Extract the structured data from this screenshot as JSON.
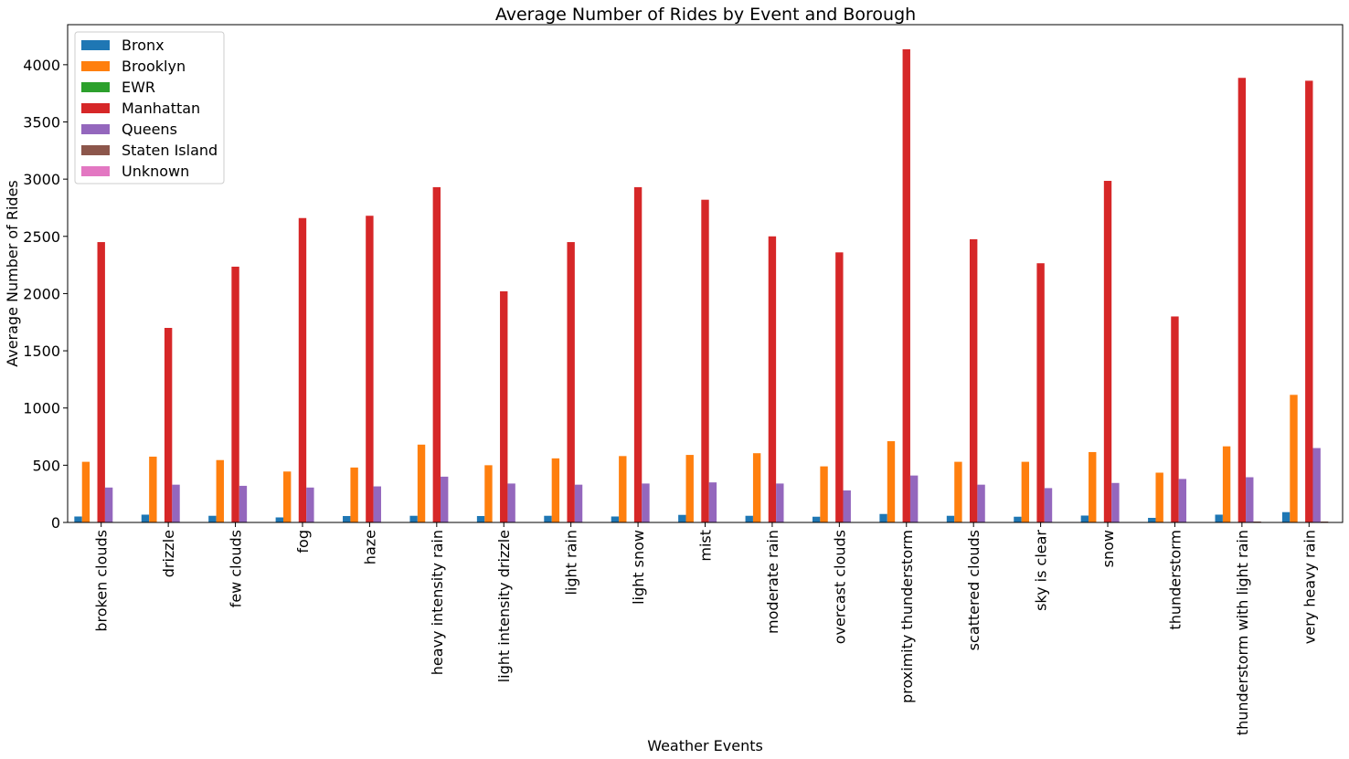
{
  "chart_data": {
    "type": "bar",
    "title": "Average Number of Rides by Event and Borough",
    "xlabel": "Weather Events",
    "ylabel": "Average Number of Rides",
    "ylim": [
      0,
      4350
    ],
    "yticks": [
      0,
      500,
      1000,
      1500,
      2000,
      2500,
      3000,
      3500,
      4000
    ],
    "grid": false,
    "legend_position": "top-left",
    "categories": [
      "broken clouds",
      "drizzle",
      "few clouds",
      "fog",
      "haze",
      "heavy intensity rain",
      "light intensity drizzle",
      "light rain",
      "light snow",
      "mist",
      "moderate rain",
      "overcast clouds",
      "proximity thunderstorm",
      "scattered clouds",
      "sky is clear",
      "snow",
      "thunderstorm",
      "thunderstorm with light rain",
      "very heavy rain"
    ],
    "series": [
      {
        "name": "Bronx",
        "color": "#1f77b4",
        "values": [
          52,
          68,
          58,
          44,
          56,
          58,
          56,
          58,
          52,
          66,
          58,
          50,
          74,
          58,
          50,
          60,
          40,
          68,
          90
        ]
      },
      {
        "name": "Brooklyn",
        "color": "#ff7f0e",
        "values": [
          530,
          575,
          545,
          445,
          480,
          680,
          500,
          560,
          580,
          590,
          605,
          490,
          710,
          530,
          530,
          615,
          435,
          665,
          1115
        ]
      },
      {
        "name": "EWR",
        "color": "#2ca02c",
        "values": [
          0,
          0,
          0,
          0,
          0,
          0,
          0,
          0,
          0,
          0,
          0,
          0,
          0,
          0,
          0,
          0,
          0,
          0,
          0
        ]
      },
      {
        "name": "Manhattan",
        "color": "#d62728",
        "values": [
          2450,
          1700,
          2235,
          2660,
          2680,
          2930,
          2020,
          2450,
          2930,
          2820,
          2500,
          2360,
          4135,
          2475,
          2265,
          2985,
          1800,
          3885,
          3860
        ]
      },
      {
        "name": "Queens",
        "color": "#9467bd",
        "values": [
          305,
          330,
          320,
          305,
          315,
          400,
          340,
          330,
          340,
          350,
          340,
          280,
          410,
          330,
          300,
          345,
          380,
          395,
          650
        ]
      },
      {
        "name": "Staten Island",
        "color": "#8c564b",
        "values": [
          1,
          1,
          1,
          1,
          1,
          1,
          1,
          1,
          1,
          1,
          1,
          1,
          1,
          1,
          1,
          1,
          1,
          8,
          8
        ]
      },
      {
        "name": "Unknown",
        "color": "#e377c2",
        "values": [
          0,
          0,
          0,
          0,
          0,
          0,
          0,
          0,
          0,
          0,
          0,
          0,
          0,
          0,
          0,
          0,
          0,
          0,
          0
        ]
      }
    ]
  }
}
